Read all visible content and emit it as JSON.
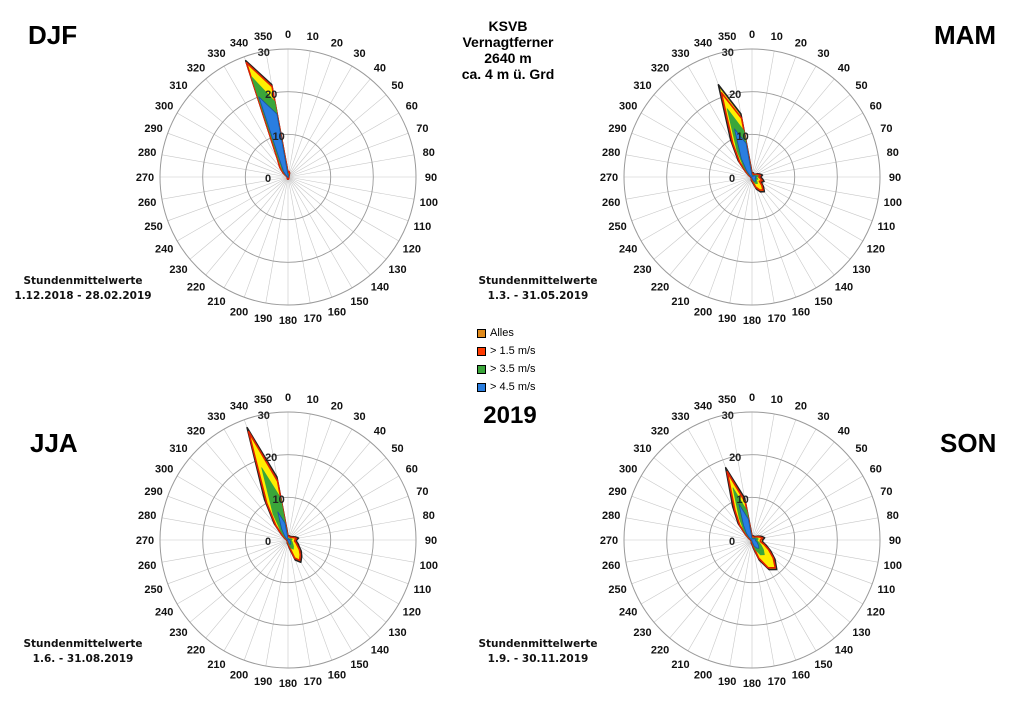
{
  "header": {
    "station_lines": [
      "KSVB",
      "Vernagtferner",
      "2640 m",
      "ca. 4 m ü. Grd"
    ],
    "year": "2019"
  },
  "legend": [
    {
      "label": "Alles",
      "color": "#e08a1a"
    },
    {
      "label": "> 1.5 m/s",
      "color": "#ff3a00"
    },
    {
      "label": "> 3.5 m/s",
      "color": "#3aa63a"
    },
    {
      "label": "> 4.5 m/s",
      "color": "#2a7ee0"
    }
  ],
  "colors": {
    "alles_fill": "#ffe000",
    "alles_stroke": "#222222",
    "over15_fill": "#ffee00",
    "over15_stroke": "#e02000",
    "over35_fill": "#3aa63a",
    "over45_fill": "#2a7ee0",
    "grid": "#9a9a9a"
  },
  "chart_data": [
    {
      "type": "polar-area",
      "panel": "DJF",
      "season_label": "DJF",
      "period_line1": "Stundenmittelwerte",
      "period_line2": "1.12.2018 - 28.02.2019",
      "radial_ticks": [
        0,
        10,
        20,
        30
      ],
      "radial_max": 30,
      "directions": [
        0,
        10,
        20,
        30,
        40,
        50,
        60,
        70,
        80,
        90,
        100,
        110,
        120,
        130,
        140,
        150,
        160,
        170,
        180,
        190,
        200,
        210,
        220,
        230,
        240,
        250,
        260,
        270,
        280,
        290,
        300,
        310,
        320,
        330,
        340,
        350
      ],
      "series": [
        {
          "name": "Alles",
          "values": [
            1,
            1.3,
            1,
            0.5,
            0.3,
            0.2,
            0.2,
            0.2,
            0.2,
            0.2,
            0.2,
            0.2,
            0.2,
            0.2,
            0.2,
            0.3,
            0.4,
            0.5,
            0.5,
            0.5,
            0.4,
            0.3,
            0.2,
            0.2,
            0.2,
            0.2,
            0.2,
            0.2,
            0.2,
            0.3,
            0.5,
            1.5,
            3,
            5,
            29,
            22
          ]
        },
        {
          "name": "> 1.5 m/s",
          "values": [
            1,
            1.3,
            1,
            0.5,
            0.3,
            0.2,
            0.2,
            0.2,
            0.2,
            0.2,
            0.2,
            0.2,
            0.2,
            0.2,
            0.2,
            0.3,
            0.4,
            0.5,
            0.5,
            0.5,
            0.4,
            0.3,
            0.2,
            0.2,
            0.2,
            0.2,
            0.2,
            0.2,
            0.2,
            0.3,
            0.5,
            1.5,
            3,
            5,
            28.5,
            21.5
          ]
        },
        {
          "name": "> 3.5 m/s",
          "values": [
            0.6,
            0.8,
            0.5,
            0.2,
            0.1,
            0.1,
            0.1,
            0.1,
            0.1,
            0.1,
            0.1,
            0.1,
            0.1,
            0.1,
            0.1,
            0.1,
            0.1,
            0.1,
            0.1,
            0.1,
            0.1,
            0.1,
            0.1,
            0.1,
            0.1,
            0.1,
            0.1,
            0.1,
            0.1,
            0.1,
            0.2,
            0.8,
            2,
            4,
            25,
            18
          ]
        },
        {
          "name": "> 4.5 m/s",
          "values": [
            0.4,
            0.5,
            0.3,
            0.1,
            0.1,
            0.1,
            0.1,
            0.1,
            0.1,
            0.1,
            0.1,
            0.1,
            0.1,
            0.1,
            0.1,
            0.1,
            0.1,
            0.1,
            0.1,
            0.1,
            0.1,
            0.1,
            0.1,
            0.1,
            0.1,
            0.1,
            0.1,
            0.1,
            0.1,
            0.1,
            0.1,
            0.5,
            1.5,
            3,
            20,
            15
          ]
        }
      ]
    },
    {
      "type": "polar-area",
      "panel": "MAM",
      "season_label": "MAM",
      "period_line1": "Stundenmittelwerte",
      "period_line2": "1.3. - 31.05.2019",
      "radial_ticks": [
        0,
        10,
        20,
        30
      ],
      "radial_max": 30,
      "directions": [
        0,
        10,
        20,
        30,
        40,
        50,
        60,
        70,
        80,
        90,
        100,
        110,
        120,
        130,
        140,
        150,
        160,
        170,
        180,
        190,
        200,
        210,
        220,
        230,
        240,
        250,
        260,
        270,
        280,
        290,
        300,
        310,
        320,
        330,
        340,
        350
      ],
      "series": [
        {
          "name": "Alles",
          "values": [
            1,
            1,
            1,
            0.8,
            0.8,
            1,
            1.5,
            2,
            2.5,
            2,
            2.5,
            3,
            2.5,
            3.5,
            4.5,
            4,
            3,
            1.5,
            1,
            0.8,
            0.5,
            0.3,
            0.3,
            0.3,
            0.3,
            0.3,
            0.3,
            0.3,
            0.4,
            0.6,
            1,
            2,
            5,
            10,
            23,
            15
          ]
        },
        {
          "name": "> 1.5 m/s",
          "values": [
            0.8,
            0.8,
            0.8,
            0.6,
            0.6,
            0.8,
            1.2,
            1.6,
            2,
            1.6,
            2,
            2.5,
            2,
            3,
            4,
            3.5,
            2.5,
            1.2,
            0.8,
            0.6,
            0.4,
            0.2,
            0.2,
            0.2,
            0.2,
            0.2,
            0.2,
            0.2,
            0.3,
            0.5,
            0.8,
            1.8,
            4.5,
            9,
            21,
            14
          ]
        },
        {
          "name": "> 3.5 m/s",
          "values": [
            0.5,
            0.5,
            0.5,
            0.4,
            0.4,
            0.5,
            0.8,
            1.2,
            1.5,
            1.2,
            1.2,
            1.5,
            1.2,
            1.5,
            2,
            1.8,
            1.2,
            0.6,
            0.4,
            0.3,
            0.2,
            0.1,
            0.1,
            0.1,
            0.1,
            0.1,
            0.1,
            0.1,
            0.2,
            0.3,
            0.5,
            1.2,
            3,
            7,
            17,
            11
          ]
        },
        {
          "name": "> 4.5 m/s",
          "values": [
            0.3,
            0.3,
            0.3,
            0.2,
            0.2,
            0.3,
            0.5,
            0.8,
            1,
            0.8,
            0.8,
            1,
            0.8,
            1,
            1.3,
            1.2,
            0.8,
            0.4,
            0.2,
            0.2,
            0.1,
            0.1,
            0.1,
            0.1,
            0.1,
            0.1,
            0.1,
            0.1,
            0.1,
            0.2,
            0.3,
            0.8,
            2,
            5,
            12,
            8
          ]
        }
      ]
    },
    {
      "type": "polar-area",
      "panel": "JJA",
      "season_label": "JJA",
      "period_line1": "Stundenmittelwerte",
      "period_line2": "1.6. - 31.08.2019",
      "radial_ticks": [
        0,
        10,
        20,
        30
      ],
      "radial_max": 30,
      "directions": [
        0,
        10,
        20,
        30,
        40,
        50,
        60,
        70,
        80,
        90,
        100,
        110,
        120,
        130,
        140,
        150,
        160,
        170,
        180,
        190,
        200,
        210,
        220,
        230,
        240,
        250,
        260,
        270,
        280,
        290,
        300,
        310,
        320,
        330,
        340,
        350
      ],
      "series": [
        {
          "name": "Alles",
          "values": [
            1,
            1,
            1,
            1,
            1,
            1.2,
            1.5,
            2,
            2.5,
            2,
            2,
            2.5,
            3,
            4,
            5,
            6,
            5,
            2,
            1,
            0.8,
            0.5,
            0.3,
            0.3,
            0.3,
            0.3,
            0.3,
            0.3,
            0.3,
            0.4,
            0.6,
            1,
            2,
            5,
            11,
            28,
            15
          ]
        },
        {
          "name": "> 1.5 m/s",
          "values": [
            0.8,
            0.8,
            0.8,
            0.8,
            0.8,
            1,
            1.2,
            1.6,
            2,
            1.6,
            1.6,
            2,
            2.5,
            3.5,
            4.5,
            5.5,
            4.5,
            1.5,
            0.8,
            0.6,
            0.4,
            0.2,
            0.2,
            0.2,
            0.2,
            0.2,
            0.2,
            0.2,
            0.3,
            0.5,
            0.8,
            1.8,
            4.5,
            10,
            27,
            14
          ]
        },
        {
          "name": "> 3.5 m/s",
          "values": [
            0.4,
            0.4,
            0.4,
            0.4,
            0.4,
            0.5,
            0.6,
            0.8,
            1,
            0.8,
            0.8,
            1,
            1.2,
            1.5,
            2,
            2.5,
            2,
            0.8,
            0.4,
            0.3,
            0.2,
            0.1,
            0.1,
            0.1,
            0.1,
            0.1,
            0.1,
            0.1,
            0.1,
            0.2,
            0.4,
            1,
            2.5,
            7,
            18,
            10
          ]
        },
        {
          "name": "> 4.5 m/s",
          "values": [
            0.2,
            0.2,
            0.2,
            0.2,
            0.2,
            0.3,
            0.3,
            0.4,
            0.5,
            0.4,
            0.4,
            0.5,
            0.6,
            0.8,
            1,
            1.2,
            1,
            0.4,
            0.2,
            0.2,
            0.1,
            0.1,
            0.1,
            0.1,
            0.1,
            0.1,
            0.1,
            0.1,
            0.1,
            0.1,
            0.2,
            0.5,
            1.2,
            3,
            7,
            4
          ]
        }
      ]
    },
    {
      "type": "polar-area",
      "panel": "SON",
      "season_label": "SON",
      "period_line1": "Stundenmittelwerte",
      "period_line2": "1.9. - 30.11.2019",
      "radial_ticks": [
        0,
        10,
        20,
        30
      ],
      "radial_max": 30,
      "directions": [
        0,
        10,
        20,
        30,
        40,
        50,
        60,
        70,
        80,
        90,
        100,
        110,
        120,
        130,
        140,
        150,
        160,
        170,
        180,
        190,
        200,
        210,
        220,
        230,
        240,
        250,
        260,
        270,
        280,
        290,
        300,
        310,
        320,
        330,
        340,
        350
      ],
      "series": [
        {
          "name": "Alles",
          "values": [
            1,
            1,
            1,
            1,
            1,
            1.3,
            1.8,
            2.5,
            3,
            2.5,
            2.5,
            3.5,
            5,
            7,
            9,
            8,
            5,
            2,
            1,
            0.8,
            0.5,
            0.3,
            0.3,
            0.3,
            0.3,
            0.3,
            0.3,
            0.3,
            0.4,
            0.6,
            1,
            2,
            5,
            9,
            18,
            10
          ]
        },
        {
          "name": "> 1.5 m/s",
          "values": [
            0.8,
            0.8,
            0.8,
            0.8,
            0.8,
            1.1,
            1.5,
            2,
            2.5,
            2,
            2,
            3,
            4.5,
            6.5,
            8.5,
            7.5,
            4.5,
            1.5,
            0.8,
            0.6,
            0.4,
            0.2,
            0.2,
            0.2,
            0.2,
            0.2,
            0.2,
            0.2,
            0.3,
            0.5,
            0.8,
            1.8,
            4.5,
            8,
            17,
            9
          ]
        },
        {
          "name": "> 3.5 m/s",
          "values": [
            0.5,
            0.5,
            0.5,
            0.5,
            0.5,
            0.7,
            1,
            1.3,
            1.5,
            1.3,
            1.3,
            1.8,
            2.5,
            3.5,
            4.5,
            4,
            2.5,
            0.8,
            0.4,
            0.3,
            0.2,
            0.1,
            0.1,
            0.1,
            0.1,
            0.1,
            0.1,
            0.1,
            0.2,
            0.3,
            0.5,
            1.2,
            3,
            6,
            13,
            7
          ]
        },
        {
          "name": "> 4.5 m/s",
          "values": [
            0.3,
            0.3,
            0.3,
            0.3,
            0.3,
            0.4,
            0.6,
            0.8,
            1,
            0.8,
            0.8,
            1.2,
            1.5,
            2,
            2.5,
            2.2,
            1.5,
            0.5,
            0.2,
            0.2,
            0.1,
            0.1,
            0.1,
            0.1,
            0.1,
            0.1,
            0.1,
            0.1,
            0.1,
            0.2,
            0.3,
            0.8,
            2,
            4,
            9,
            5
          ]
        }
      ]
    }
  ]
}
